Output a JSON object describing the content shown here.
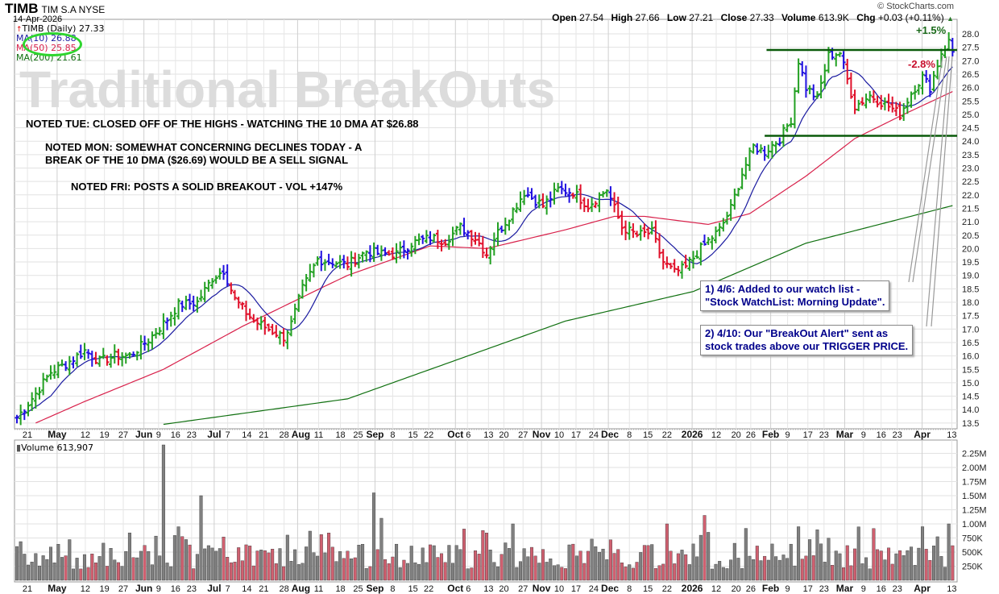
{
  "header": {
    "symbol": "TIMB",
    "company": "TIM S.A",
    "exchange": "NYSE",
    "date": "14-Apr-2026",
    "copyright": "© StockCharts.com",
    "open_label": "Open",
    "open": "27.54",
    "high_label": "High",
    "high": "27.66",
    "low_label": "Low",
    "low": "27.21",
    "close_label": "Close",
    "close": "27.33",
    "volume_label": "Volume",
    "volume": "613.9K",
    "chg_label": "Chg",
    "chg": "+0.03 (+0.11%)"
  },
  "legend": {
    "price": "TIMB (Daily) 27.33",
    "ma10": "MA(10) 26.88",
    "ma50": "MA(50) 25.85",
    "ma200": "MA(200) 21.61",
    "volume": "Volume 613,907"
  },
  "watermark": "Traditional BreakOuts",
  "notes": [
    "NOTED TUE: CLOSED OFF OF THE HIGHS - WATCHING THE 10 DMA AT $26.88",
    "NOTED MON: SOMEWHAT CONCERNING DECLINES TODAY - A",
    "BREAK OF THE 10 DMA ($26.69) WOULD BE A SELL SIGNAL",
    "NOTED FRI: POSTS A SOLID BREAKOUT - VOL +147%"
  ],
  "callouts": {
    "box1_line1": "1) 4/6: Added to our watch list -",
    "box1_line2": "\"Stock WatchList: Morning Update\".",
    "box2_line1": "2) 4/10: Our \"BreakOut Alert\" sent as",
    "box2_line2": "stock trades above our TRIGGER PRICE.",
    "gain": "+1.5%",
    "loss": "-2.8%"
  },
  "colors": {
    "up": "#22a022",
    "down": "#e0102a",
    "neutral": "#2010e0",
    "ma10": "#1a1aa0",
    "ma50": "#d8204a",
    "ma200": "#107010",
    "level": "#0a5a0a",
    "vol_up": "#808080",
    "vol_down": "#d06070"
  },
  "chart_data": {
    "type": "ohlc",
    "ylim": [
      13.5,
      28.0
    ],
    "y_ticks": [
      "13.5",
      "14.0",
      "14.5",
      "15.0",
      "15.5",
      "16.0",
      "16.5",
      "17.0",
      "17.5",
      "18.0",
      "18.5",
      "19.0",
      "19.5",
      "20.0",
      "20.5",
      "21.0",
      "21.5",
      "22.0",
      "22.5",
      "23.0",
      "23.5",
      "24.0",
      "24.5",
      "25.0",
      "25.5",
      "26.0",
      "26.5",
      "27.0",
      "27.5",
      "28.0"
    ],
    "days": 250,
    "close_path": [
      [
        0,
        13.7
      ],
      [
        5,
        14.6
      ],
      [
        9,
        15.4
      ],
      [
        13,
        15.7
      ],
      [
        18,
        16.2
      ],
      [
        22,
        15.8
      ],
      [
        26,
        16.0
      ],
      [
        30,
        16.0
      ],
      [
        35,
        16.6
      ],
      [
        39,
        17.2
      ],
      [
        43,
        17.9
      ],
      [
        48,
        18.0
      ],
      [
        52,
        18.9
      ],
      [
        55,
        19.2
      ],
      [
        58,
        18.1
      ],
      [
        63,
        17.3
      ],
      [
        67,
        17.0
      ],
      [
        71,
        16.7
      ],
      [
        73,
        17.2
      ],
      [
        76,
        18.5
      ],
      [
        80,
        19.6
      ],
      [
        84,
        19.5
      ],
      [
        88,
        19.4
      ],
      [
        93,
        19.9
      ],
      [
        97,
        19.8
      ],
      [
        101,
        19.8
      ],
      [
        105,
        20.2
      ],
      [
        110,
        20.4
      ],
      [
        114,
        20.3
      ],
      [
        118,
        20.8
      ],
      [
        122,
        20.4
      ],
      [
        125,
        19.8
      ],
      [
        127,
        20.4
      ],
      [
        131,
        21.2
      ],
      [
        135,
        22.1
      ],
      [
        140,
        21.6
      ],
      [
        144,
        22.2
      ],
      [
        148,
        22.1
      ],
      [
        152,
        21.6
      ],
      [
        157,
        22.2
      ],
      [
        161,
        20.8
      ],
      [
        165,
        20.5
      ],
      [
        169,
        20.6
      ],
      [
        172,
        19.5
      ],
      [
        175,
        19.1
      ],
      [
        178,
        19.3
      ],
      [
        182,
        20.0
      ],
      [
        187,
        20.7
      ],
      [
        190,
        21.5
      ],
      [
        193,
        22.8
      ],
      [
        196,
        23.8
      ],
      [
        199,
        23.6
      ],
      [
        203,
        24.1
      ],
      [
        206,
        24.8
      ],
      [
        208,
        27.0
      ],
      [
        210,
        26.0
      ],
      [
        213,
        25.6
      ],
      [
        216,
        27.2
      ],
      [
        219,
        27.3
      ],
      [
        221,
        26.3
      ],
      [
        223,
        25.3
      ],
      [
        227,
        25.7
      ],
      [
        232,
        25.3
      ],
      [
        235,
        25.0
      ],
      [
        238,
        25.8
      ],
      [
        241,
        26.4
      ],
      [
        243,
        26.0
      ],
      [
        246,
        27.3
      ],
      [
        248,
        27.7
      ],
      [
        249,
        27.33
      ]
    ],
    "ma50_path": [
      [
        5,
        13.5
      ],
      [
        18,
        14.3
      ],
      [
        39,
        15.5
      ],
      [
        60,
        17.1
      ],
      [
        82,
        18.6
      ],
      [
        88,
        19.0
      ],
      [
        110,
        20.1
      ],
      [
        125,
        20.0
      ],
      [
        146,
        20.7
      ],
      [
        159,
        21.2
      ],
      [
        167,
        21.2
      ],
      [
        184,
        20.9
      ],
      [
        195,
        21.3
      ],
      [
        210,
        22.7
      ],
      [
        223,
        24.1
      ],
      [
        236,
        25.0
      ],
      [
        249,
        25.85
      ]
    ],
    "ma200_path": [
      [
        39,
        13.45
      ],
      [
        88,
        14.4
      ],
      [
        146,
        17.3
      ],
      [
        180,
        18.4
      ],
      [
        210,
        20.2
      ],
      [
        249,
        21.6
      ]
    ],
    "levels": [
      27.4,
      24.2
    ],
    "volume_ticks": [
      [
        "2.25M",
        2.25
      ],
      [
        "2.00M",
        2.0
      ],
      [
        "1.75M",
        1.75
      ],
      [
        "1.50M",
        1.5
      ],
      [
        "1.25M",
        1.25
      ],
      [
        "1.00M",
        1.0
      ],
      [
        "750K",
        0.75
      ],
      [
        "500K",
        0.5
      ],
      [
        "250K",
        0.25
      ]
    ],
    "volume_spikes_m": [
      [
        39,
        2.4
      ],
      [
        49,
        1.5
      ],
      [
        95,
        1.55
      ],
      [
        97,
        1.1
      ],
      [
        132,
        1.0
      ],
      [
        173,
        1.0
      ],
      [
        183,
        1.15
      ],
      [
        208,
        0.95
      ],
      [
        241,
        0.95
      ],
      [
        248,
        1.0
      ],
      [
        249,
        0.614
      ]
    ],
    "x_ticks": [
      [
        "21",
        2.8,
        0
      ],
      [
        "May",
        10.7,
        1
      ],
      [
        "12",
        18.2,
        0
      ],
      [
        "19",
        23.3,
        0
      ],
      [
        "27",
        28.3,
        0
      ],
      [
        "Jun",
        33.8,
        1
      ],
      [
        "9",
        37.7,
        0
      ],
      [
        "16",
        42.2,
        0
      ],
      [
        "23",
        46.5,
        0
      ],
      [
        "Jul",
        52.5,
        1
      ],
      [
        "7",
        56.1,
        0
      ],
      [
        "14",
        61.2,
        0
      ],
      [
        "21",
        65.7,
        0
      ],
      [
        "28",
        71.1,
        0
      ],
      [
        "Aug",
        74.7,
        1
      ],
      [
        "11",
        80.3,
        0
      ],
      [
        "18",
        86.1,
        0
      ],
      [
        "25",
        90.8,
        0
      ],
      [
        "Sep",
        95.3,
        1
      ],
      [
        "8",
        100,
        0
      ],
      [
        "15",
        105.4,
        0
      ],
      [
        "22",
        109.6,
        0
      ],
      [
        "Oct",
        116.7,
        1
      ],
      [
        "6",
        119.9,
        0
      ],
      [
        "13",
        125.5,
        0
      ],
      [
        "20",
        129.6,
        0
      ],
      [
        "27",
        134.7,
        0
      ],
      [
        "Nov",
        139.6,
        1
      ],
      [
        "10",
        144.3,
        0
      ],
      [
        "17",
        148.8,
        0
      ],
      [
        "24",
        153.5,
        0
      ],
      [
        "Dec",
        157.4,
        1
      ],
      [
        "8",
        163,
        0
      ],
      [
        "15",
        167.9,
        0
      ],
      [
        "22",
        173,
        0
      ],
      [
        "2026",
        179.7,
        1
      ],
      [
        "12",
        186.1,
        0
      ],
      [
        "20",
        191.4,
        0
      ],
      [
        "26",
        195.3,
        0
      ],
      [
        "Feb",
        200.6,
        1
      ],
      [
        "9",
        205.1,
        0
      ],
      [
        "17",
        210.5,
        0
      ],
      [
        "23",
        214.8,
        0
      ],
      [
        "Mar",
        220.3,
        1
      ],
      [
        "9",
        225.3,
        0
      ],
      [
        "16",
        230,
        0
      ],
      [
        "23",
        234.3,
        0
      ],
      [
        "Apr",
        240.9,
        1
      ],
      [
        "13",
        248.8,
        0
      ]
    ]
  }
}
